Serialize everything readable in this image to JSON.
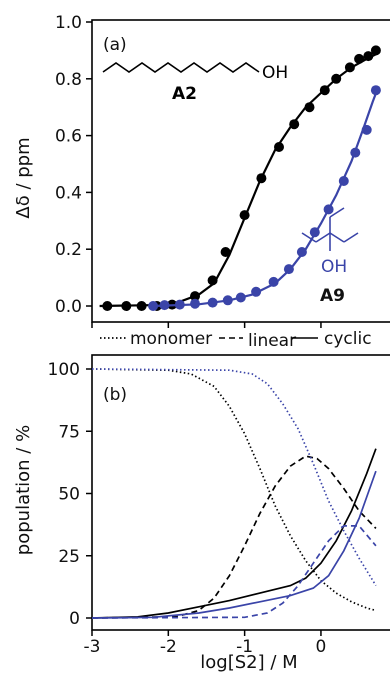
{
  "chart_data": [
    {
      "type": "scatter",
      "panel_label": "(a)",
      "ylabel": "Δδ / ppm",
      "ylim": [
        0.0,
        1.0
      ],
      "xlim": [
        -3,
        0.8
      ],
      "yticks": [
        "0.0",
        "0.2",
        "0.4",
        "0.6",
        "0.8",
        "1.0"
      ],
      "series": [
        {
          "name": "A2",
          "color": "#000000",
          "points": [
            [
              -2.8,
              0.0
            ],
            [
              -2.55,
              0.0
            ],
            [
              -2.35,
              0.0
            ],
            [
              -2.15,
              0.0
            ],
            [
              -1.95,
              0.005
            ],
            [
              -1.65,
              0.035
            ],
            [
              -1.42,
              0.09
            ],
            [
              -1.25,
              0.19
            ],
            [
              -1.0,
              0.32
            ],
            [
              -0.78,
              0.45
            ],
            [
              -0.55,
              0.56
            ],
            [
              -0.35,
              0.64
            ],
            [
              -0.15,
              0.7
            ],
            [
              0.05,
              0.76
            ],
            [
              0.2,
              0.8
            ],
            [
              0.38,
              0.84
            ],
            [
              0.5,
              0.87
            ],
            [
              0.62,
              0.88
            ],
            [
              0.72,
              0.9
            ]
          ],
          "curve": [
            [
              -2.9,
              0.0
            ],
            [
              -2.2,
              0.003
            ],
            [
              -1.9,
              0.01
            ],
            [
              -1.6,
              0.04
            ],
            [
              -1.4,
              0.08
            ],
            [
              -1.2,
              0.18
            ],
            [
              -1.0,
              0.31
            ],
            [
              -0.8,
              0.44
            ],
            [
              -0.6,
              0.55
            ],
            [
              -0.4,
              0.63
            ],
            [
              -0.2,
              0.7
            ],
            [
              0.0,
              0.75
            ],
            [
              0.2,
              0.8
            ],
            [
              0.4,
              0.84
            ],
            [
              0.6,
              0.87
            ],
            [
              0.75,
              0.89
            ]
          ]
        },
        {
          "name": "A9",
          "color": "#3a44a8",
          "points": [
            [
              -2.2,
              0.0
            ],
            [
              -2.05,
              0.003
            ],
            [
              -1.85,
              0.005
            ],
            [
              -1.65,
              0.008
            ],
            [
              -1.42,
              0.012
            ],
            [
              -1.22,
              0.02
            ],
            [
              -1.05,
              0.03
            ],
            [
              -0.85,
              0.05
            ],
            [
              -0.62,
              0.085
            ],
            [
              -0.42,
              0.13
            ],
            [
              -0.25,
              0.19
            ],
            [
              -0.08,
              0.26
            ],
            [
              0.1,
              0.34
            ],
            [
              0.3,
              0.44
            ],
            [
              0.45,
              0.54
            ],
            [
              0.6,
              0.62
            ],
            [
              0.72,
              0.76
            ]
          ],
          "curve": [
            [
              -2.2,
              0.0
            ],
            [
              -1.6,
              0.006
            ],
            [
              -1.2,
              0.02
            ],
            [
              -0.9,
              0.04
            ],
            [
              -0.6,
              0.08
            ],
            [
              -0.4,
              0.13
            ],
            [
              -0.2,
              0.2
            ],
            [
              0.0,
              0.29
            ],
            [
              0.2,
              0.39
            ],
            [
              0.4,
              0.51
            ],
            [
              0.55,
              0.62
            ],
            [
              0.68,
              0.72
            ],
            [
              0.75,
              0.77
            ]
          ]
        }
      ],
      "annotations": {
        "label_a2": "A2",
        "label_a9": "A9",
        "oh": "OH"
      }
    },
    {
      "type": "line",
      "panel_label": "(b)",
      "ylabel": "population / %",
      "xlabel": "log[S2] / M",
      "ylim": [
        0,
        100
      ],
      "xlim": [
        -3,
        0.8
      ],
      "xticks": [
        "-3",
        "-2",
        "-1",
        "0"
      ],
      "yticks": [
        "0",
        "25",
        "50",
        "75",
        "100"
      ],
      "legend": {
        "position": "top",
        "entries": [
          {
            "label": "monomer",
            "style": "dotted"
          },
          {
            "label": "linear",
            "style": "dashed"
          },
          {
            "label": "cyclic",
            "style": "solid"
          }
        ]
      },
      "series": [
        {
          "name": "monomer",
          "compound": "A2",
          "color": "#000000",
          "style": "dotted",
          "points": [
            [
              -3,
              100
            ],
            [
              -2,
              99.5
            ],
            [
              -1.7,
              98
            ],
            [
              -1.4,
              93
            ],
            [
              -1.2,
              85
            ],
            [
              -1.0,
              74
            ],
            [
              -0.8,
              60
            ],
            [
              -0.6,
              45
            ],
            [
              -0.4,
              33
            ],
            [
              -0.2,
              23
            ],
            [
              0.0,
              15
            ],
            [
              0.2,
              10
            ],
            [
              0.4,
              6.5
            ],
            [
              0.6,
              4
            ],
            [
              0.72,
              3
            ]
          ]
        },
        {
          "name": "linear",
          "compound": "A2",
          "color": "#000000",
          "style": "dashed",
          "points": [
            [
              -3,
              0
            ],
            [
              -1.9,
              0.5
            ],
            [
              -1.6,
              3
            ],
            [
              -1.4,
              8
            ],
            [
              -1.2,
              17
            ],
            [
              -1.0,
              29
            ],
            [
              -0.8,
              42
            ],
            [
              -0.6,
              53
            ],
            [
              -0.4,
              61
            ],
            [
              -0.2,
              65
            ],
            [
              -0.05,
              64
            ],
            [
              0.1,
              60
            ],
            [
              0.3,
              52
            ],
            [
              0.5,
              43
            ],
            [
              0.72,
              36
            ]
          ]
        },
        {
          "name": "cyclic",
          "compound": "A2",
          "color": "#000000",
          "style": "solid",
          "points": [
            [
              -3,
              0
            ],
            [
              -2.4,
              0.5
            ],
            [
              -2.0,
              2
            ],
            [
              -1.6,
              4.5
            ],
            [
              -1.2,
              7
            ],
            [
              -0.8,
              10
            ],
            [
              -0.4,
              13
            ],
            [
              -0.2,
              16
            ],
            [
              0.0,
              22
            ],
            [
              0.2,
              31
            ],
            [
              0.4,
              43
            ],
            [
              0.6,
              58
            ],
            [
              0.72,
              68
            ]
          ]
        },
        {
          "name": "monomer",
          "compound": "A9",
          "color": "#3a44a8",
          "style": "dotted",
          "points": [
            [
              -3,
              100
            ],
            [
              -1.2,
              99.5
            ],
            [
              -0.9,
              98
            ],
            [
              -0.7,
              94
            ],
            [
              -0.5,
              86
            ],
            [
              -0.3,
              76
            ],
            [
              -0.1,
              62
            ],
            [
              0.1,
              47
            ],
            [
              0.3,
              35
            ],
            [
              0.5,
              24
            ],
            [
              0.72,
              13
            ]
          ]
        },
        {
          "name": "linear",
          "compound": "A9",
          "color": "#3a44a8",
          "style": "dashed",
          "points": [
            [
              -3,
              0
            ],
            [
              -1.0,
              0.3
            ],
            [
              -0.7,
              2
            ],
            [
              -0.5,
              6
            ],
            [
              -0.3,
              13
            ],
            [
              -0.1,
              22
            ],
            [
              0.1,
              31
            ],
            [
              0.3,
              37
            ],
            [
              0.5,
              37
            ],
            [
              0.72,
              29
            ]
          ]
        },
        {
          "name": "cyclic",
          "compound": "A9",
          "color": "#3a44a8",
          "style": "solid",
          "points": [
            [
              -3,
              0
            ],
            [
              -2.2,
              0.3
            ],
            [
              -1.6,
              2
            ],
            [
              -1.2,
              4
            ],
            [
              -0.8,
              6.5
            ],
            [
              -0.4,
              9
            ],
            [
              -0.1,
              12
            ],
            [
              0.1,
              17
            ],
            [
              0.3,
              27
            ],
            [
              0.5,
              40
            ],
            [
              0.72,
              59
            ]
          ]
        }
      ]
    }
  ]
}
